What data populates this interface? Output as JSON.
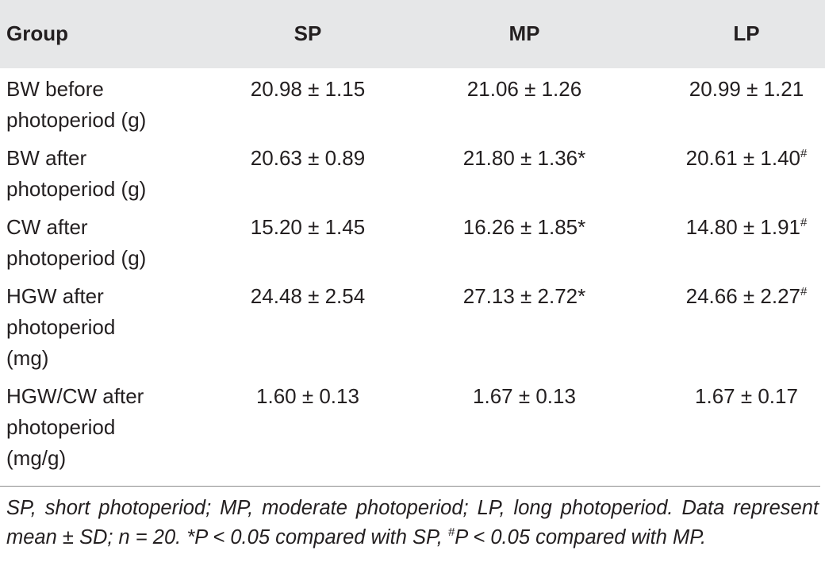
{
  "table": {
    "headers": [
      "Group",
      "SP",
      "MP",
      "LP"
    ],
    "rows": [
      {
        "label_lines": [
          "BW before",
          "photoperiod (g)"
        ],
        "sp": "20.98 ± 1.15",
        "sp_mark": "",
        "mp": "21.06 ± 1.26",
        "mp_mark": "",
        "lp": "20.99 ± 1.21",
        "lp_mark": ""
      },
      {
        "label_lines": [
          "BW after",
          "photoperiod (g)"
        ],
        "sp": "20.63 ± 0.89",
        "sp_mark": "",
        "mp": "21.80 ± 1.36",
        "mp_mark": "*",
        "lp": "20.61 ± 1.40",
        "lp_mark": "#"
      },
      {
        "label_lines": [
          "CW after",
          "photoperiod (g)"
        ],
        "sp": "15.20 ± 1.45",
        "sp_mark": "",
        "mp": "16.26 ± 1.85",
        "mp_mark": "*",
        "lp": "14.80 ± 1.91",
        "lp_mark": "#"
      },
      {
        "label_lines": [
          "HGW after",
          "photoperiod",
          "(mg)"
        ],
        "sp": "24.48 ± 2.54",
        "sp_mark": "",
        "mp": "27.13 ± 2.72",
        "mp_mark": "*",
        "lp": "24.66 ± 2.27",
        "lp_mark": "#"
      },
      {
        "label_lines": [
          "HGW/CW after",
          "photoperiod",
          "(mg/g)"
        ],
        "sp": "1.60 ± 0.13",
        "sp_mark": "",
        "mp": "1.67 ± 0.13",
        "mp_mark": "",
        "lp": "1.67 ± 0.17",
        "lp_mark": ""
      }
    ]
  },
  "footnote": {
    "part1": "SP, short photoperiod; MP, moderate photoperiod; LP, long photoperiod. Data represent mean ± SD; n = 20. *P < 0.05 compared with SP, ",
    "hash": "#",
    "part2": "P < 0.05 compared with MP."
  }
}
